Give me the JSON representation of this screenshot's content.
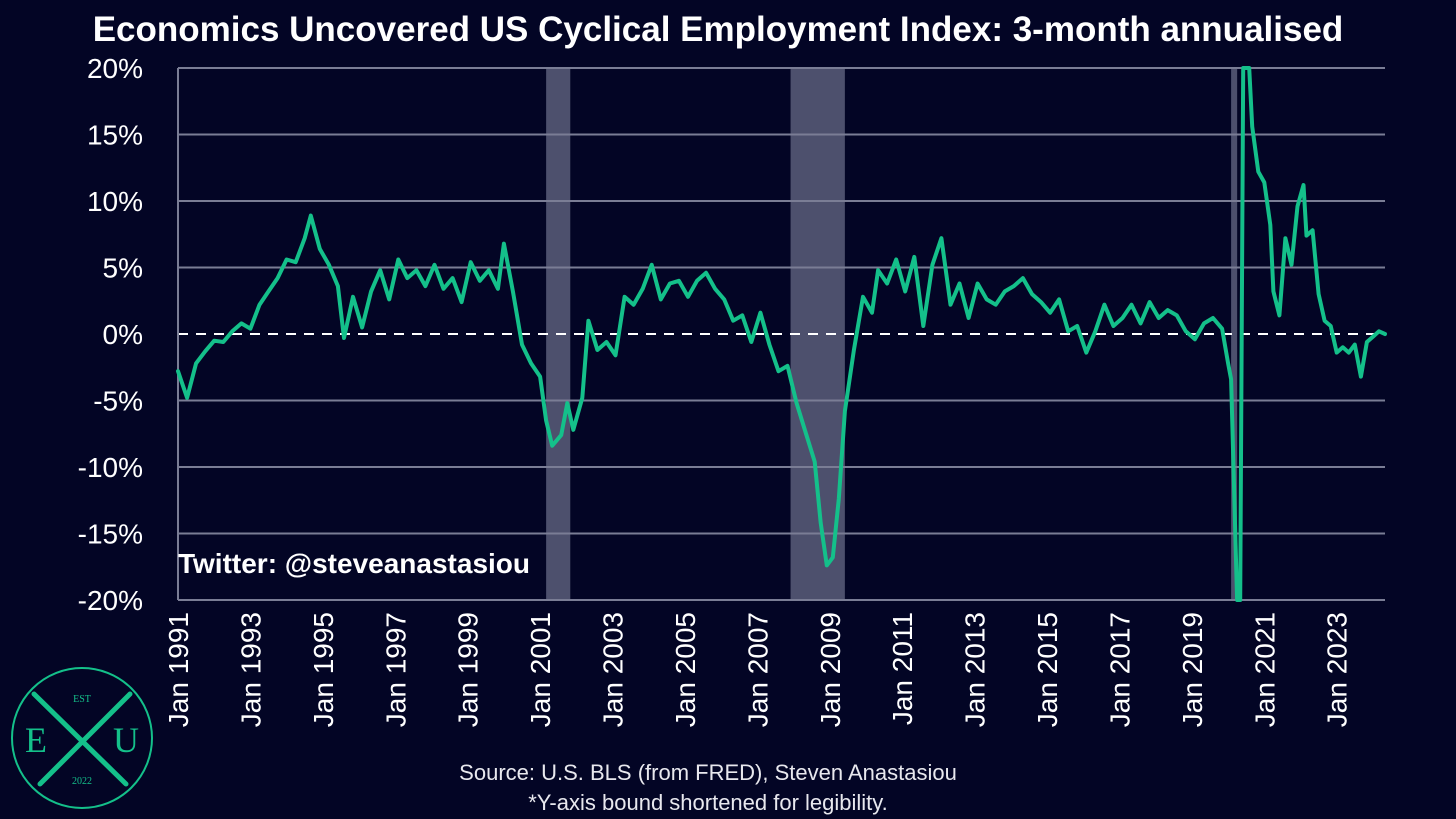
{
  "header": {
    "title": "Economics Uncovered US Cyclical Employment Index: 3-month annualised"
  },
  "footer": {
    "source": "Source: U.S. BLS (from FRED), Steven Anastasiou",
    "note": "*Y-axis bound shortened for legibility."
  },
  "watermark": {
    "twitter": "Twitter: @steveanastasiou"
  },
  "logo": {
    "top": "EST",
    "left": "E",
    "right": "U",
    "bottom": "2022"
  },
  "colors": {
    "background": "#030525",
    "line": "#14c08a",
    "recession": "#5b5e7a",
    "grid": "#7a7d95"
  },
  "chart_data": {
    "type": "line",
    "title": "Economics Uncovered US Cyclical Employment Index: 3-month annualised",
    "ylim": [
      -20,
      20
    ],
    "xlim": [
      "1991-01",
      "2024-05"
    ],
    "y_ticks": [
      "-20%",
      "-15%",
      "-10%",
      "-5%",
      "0%",
      "5%",
      "10%",
      "15%",
      "20%"
    ],
    "y_tick_values": [
      -20,
      -15,
      -10,
      -5,
      0,
      5,
      10,
      15,
      20
    ],
    "x_ticks": [
      "Jan 1991",
      "Jan 1993",
      "Jan 1995",
      "Jan 1997",
      "Jan 1999",
      "Jan 2001",
      "Jan 2003",
      "Jan 2005",
      "Jan 2007",
      "Jan 2009",
      "Jan 2011",
      "Jan 2013",
      "Jan 2015",
      "Jan 2017",
      "Jan 2019",
      "Jan 2021",
      "Jan 2023"
    ],
    "x_tick_dates": [
      "1991-01",
      "1993-01",
      "1995-01",
      "1997-01",
      "1999-01",
      "2001-01",
      "2003-01",
      "2005-01",
      "2007-01",
      "2009-01",
      "2011-01",
      "2013-01",
      "2015-01",
      "2017-01",
      "2019-01",
      "2021-01",
      "2023-01"
    ],
    "grid": true,
    "zero_line": "dashed",
    "recessions": [
      {
        "start": "2001-03",
        "end": "2001-11"
      },
      {
        "start": "2007-12",
        "end": "2009-06"
      },
      {
        "start": "2020-02",
        "end": "2020-04"
      }
    ],
    "series": [
      {
        "points": [
          [
            "1991-01",
            -2.8
          ],
          [
            "1991-04",
            -4.8
          ],
          [
            "1991-07",
            -2.2
          ],
          [
            "1991-10",
            -1.3
          ],
          [
            "1992-01",
            -0.5
          ],
          [
            "1992-04",
            -0.6
          ],
          [
            "1992-07",
            0.2
          ],
          [
            "1992-10",
            0.8
          ],
          [
            "1993-01",
            0.4
          ],
          [
            "1993-04",
            2.2
          ],
          [
            "1993-07",
            3.2
          ],
          [
            "1993-10",
            4.2
          ],
          [
            "1994-01",
            5.6
          ],
          [
            "1994-04",
            5.4
          ],
          [
            "1994-07",
            7.2
          ],
          [
            "1994-09",
            8.9
          ],
          [
            "1994-12",
            6.4
          ],
          [
            "1995-03",
            5.2
          ],
          [
            "1995-06",
            3.6
          ],
          [
            "1995-08",
            -0.3
          ],
          [
            "1995-11",
            2.8
          ],
          [
            "1996-02",
            0.5
          ],
          [
            "1996-05",
            3.2
          ],
          [
            "1996-08",
            4.8
          ],
          [
            "1996-11",
            2.6
          ],
          [
            "1997-02",
            5.6
          ],
          [
            "1997-05",
            4.2
          ],
          [
            "1997-08",
            4.8
          ],
          [
            "1997-11",
            3.6
          ],
          [
            "1998-02",
            5.2
          ],
          [
            "1998-05",
            3.4
          ],
          [
            "1998-08",
            4.2
          ],
          [
            "1998-11",
            2.4
          ],
          [
            "1999-02",
            5.4
          ],
          [
            "1999-05",
            4.0
          ],
          [
            "1999-08",
            4.8
          ],
          [
            "1999-11",
            3.4
          ],
          [
            "2000-01",
            6.8
          ],
          [
            "2000-04",
            3.2
          ],
          [
            "2000-07",
            -0.8
          ],
          [
            "2000-10",
            -2.2
          ],
          [
            "2001-01",
            -3.2
          ],
          [
            "2001-03",
            -6.5
          ],
          [
            "2001-05",
            -8.4
          ],
          [
            "2001-08",
            -7.6
          ],
          [
            "2001-10",
            -5.2
          ],
          [
            "2001-12",
            -7.2
          ],
          [
            "2002-03",
            -4.8
          ],
          [
            "2002-05",
            1.0
          ],
          [
            "2002-08",
            -1.2
          ],
          [
            "2002-11",
            -0.6
          ],
          [
            "2003-02",
            -1.6
          ],
          [
            "2003-05",
            2.8
          ],
          [
            "2003-08",
            2.2
          ],
          [
            "2003-11",
            3.4
          ],
          [
            "2004-02",
            5.2
          ],
          [
            "2004-05",
            2.6
          ],
          [
            "2004-08",
            3.8
          ],
          [
            "2004-11",
            4.0
          ],
          [
            "2005-02",
            2.8
          ],
          [
            "2005-05",
            4.0
          ],
          [
            "2005-08",
            4.6
          ],
          [
            "2005-11",
            3.4
          ],
          [
            "2006-02",
            2.6
          ],
          [
            "2006-05",
            1.0
          ],
          [
            "2006-08",
            1.4
          ],
          [
            "2006-11",
            -0.6
          ],
          [
            "2007-02",
            1.6
          ],
          [
            "2007-05",
            -0.8
          ],
          [
            "2007-08",
            -2.8
          ],
          [
            "2007-11",
            -2.4
          ],
          [
            "2008-02",
            -5.2
          ],
          [
            "2008-05",
            -7.4
          ],
          [
            "2008-08",
            -9.6
          ],
          [
            "2008-10",
            -14.2
          ],
          [
            "2008-12",
            -17.4
          ],
          [
            "2009-02",
            -16.8
          ],
          [
            "2009-04",
            -12.4
          ],
          [
            "2009-06",
            -5.8
          ],
          [
            "2009-09",
            -1.2
          ],
          [
            "2009-12",
            2.8
          ],
          [
            "2010-03",
            1.6
          ],
          [
            "2010-05",
            4.8
          ],
          [
            "2010-08",
            3.8
          ],
          [
            "2010-11",
            5.6
          ],
          [
            "2011-02",
            3.2
          ],
          [
            "2011-05",
            5.8
          ],
          [
            "2011-08",
            0.6
          ],
          [
            "2011-11",
            5.2
          ],
          [
            "2012-02",
            7.2
          ],
          [
            "2012-05",
            2.2
          ],
          [
            "2012-08",
            3.8
          ],
          [
            "2012-11",
            1.2
          ],
          [
            "2013-02",
            3.8
          ],
          [
            "2013-05",
            2.6
          ],
          [
            "2013-08",
            2.2
          ],
          [
            "2013-11",
            3.2
          ],
          [
            "2014-02",
            3.6
          ],
          [
            "2014-05",
            4.2
          ],
          [
            "2014-08",
            3.0
          ],
          [
            "2014-11",
            2.4
          ],
          [
            "2015-02",
            1.6
          ],
          [
            "2015-05",
            2.6
          ],
          [
            "2015-08",
            0.2
          ],
          [
            "2015-11",
            0.6
          ],
          [
            "2016-02",
            -1.4
          ],
          [
            "2016-05",
            0.2
          ],
          [
            "2016-08",
            2.2
          ],
          [
            "2016-11",
            0.6
          ],
          [
            "2017-02",
            1.2
          ],
          [
            "2017-05",
            2.2
          ],
          [
            "2017-08",
            0.8
          ],
          [
            "2017-11",
            2.4
          ],
          [
            "2018-02",
            1.2
          ],
          [
            "2018-05",
            1.8
          ],
          [
            "2018-08",
            1.4
          ],
          [
            "2018-11",
            0.2
          ],
          [
            "2019-02",
            -0.4
          ],
          [
            "2019-05",
            0.8
          ],
          [
            "2019-08",
            1.2
          ],
          [
            "2019-11",
            0.4
          ],
          [
            "2020-01",
            -2.2
          ],
          [
            "2020-02",
            -3.4
          ],
          [
            "2020-04",
            -20
          ],
          [
            "2020-05",
            -20
          ],
          [
            "2020-06",
            20
          ],
          [
            "2020-08",
            20
          ],
          [
            "2020-09",
            15.6
          ],
          [
            "2020-11",
            12.2
          ],
          [
            "2021-01",
            11.4
          ],
          [
            "2021-03",
            8.2
          ],
          [
            "2021-04",
            3.2
          ],
          [
            "2021-06",
            1.4
          ],
          [
            "2021-08",
            7.2
          ],
          [
            "2021-10",
            5.2
          ],
          [
            "2021-12",
            9.6
          ],
          [
            "2022-02",
            11.2
          ],
          [
            "2022-03",
            7.4
          ],
          [
            "2022-05",
            7.8
          ],
          [
            "2022-07",
            3.0
          ],
          [
            "2022-09",
            1.0
          ],
          [
            "2022-11",
            0.6
          ],
          [
            "2023-01",
            -1.4
          ],
          [
            "2023-03",
            -1.0
          ],
          [
            "2023-05",
            -1.4
          ],
          [
            "2023-07",
            -0.8
          ],
          [
            "2023-09",
            -3.2
          ],
          [
            "2023-11",
            -0.6
          ],
          [
            "2024-01",
            -0.2
          ],
          [
            "2024-03",
            0.2
          ],
          [
            "2024-05",
            0.0
          ]
        ]
      }
    ]
  }
}
